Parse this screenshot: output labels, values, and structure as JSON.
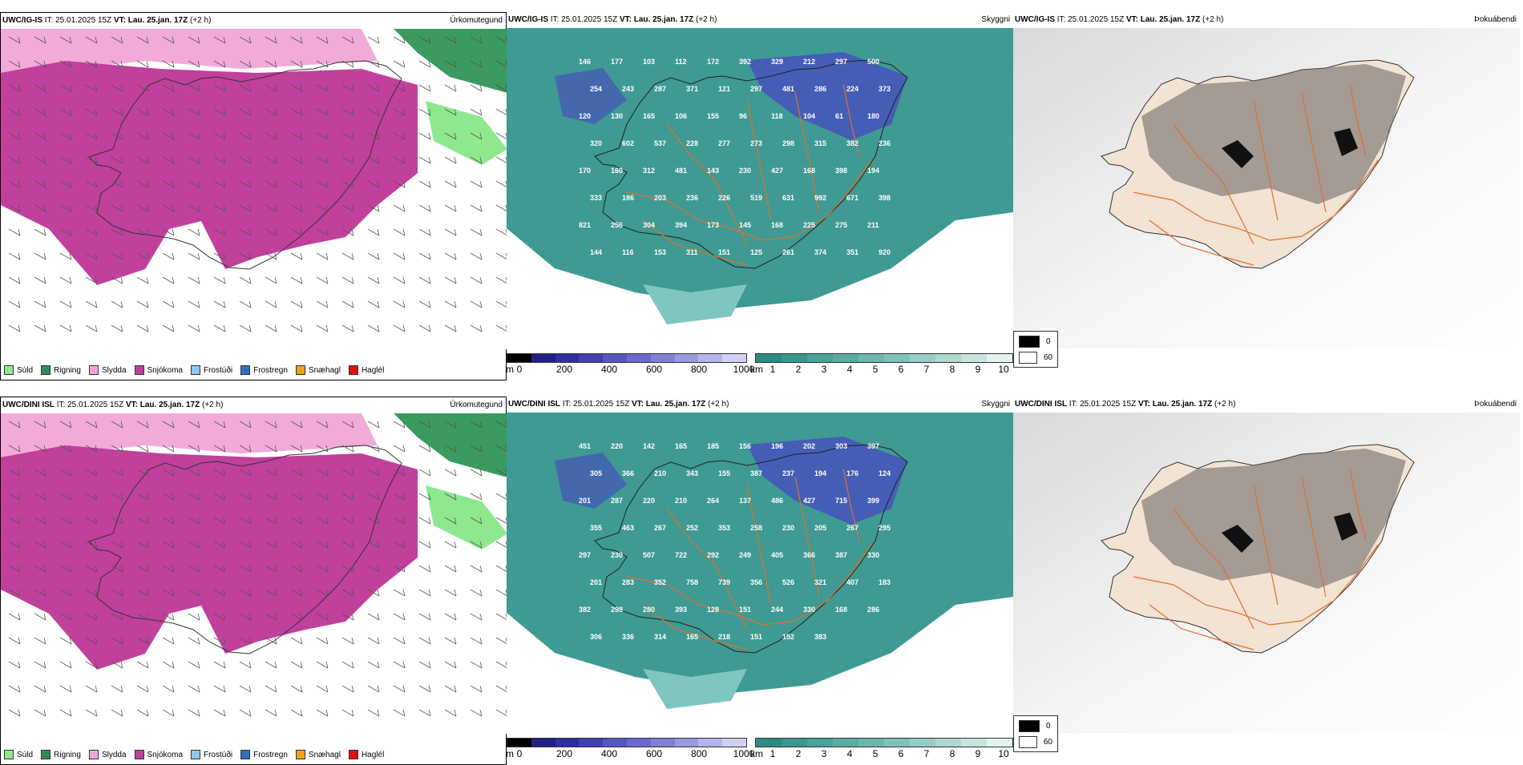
{
  "rows": [
    {
      "model": "UWC/IG-IS",
      "it": "IT: 25.01.2025 15Z",
      "vt_label": "VT:",
      "vt": "Lau. 25.jan. 17Z",
      "offset": "(+2 h)",
      "titles": {
        "precip": "Úrkomutegund",
        "cloud": "Skyggni",
        "fog": "Þokuábendi"
      },
      "labels": [
        "146",
        "177",
        "103",
        "112",
        "172",
        "392",
        "329",
        "212",
        "297",
        "500",
        "254",
        "243",
        "287",
        "371",
        "121",
        "297",
        "481",
        "286",
        "224",
        "373",
        "120",
        "130",
        "165",
        "106",
        "155",
        "96",
        "118",
        "104",
        "61",
        "180",
        "320",
        "602",
        "537",
        "228",
        "277",
        "273",
        "298",
        "315",
        "382",
        "236",
        "170",
        "160",
        "312",
        "481",
        "143",
        "230",
        "427",
        "168",
        "398",
        "194",
        "333",
        "186",
        "203",
        "236",
        "226",
        "519",
        "631",
        "992",
        "671",
        "398",
        "821",
        "256",
        "304",
        "394",
        "173",
        "145",
        "168",
        "225",
        "275",
        "211",
        "144",
        "116",
        "153",
        "311",
        "151",
        "125",
        "261",
        "374",
        "351",
        "920"
      ]
    },
    {
      "model": "UWC/DINI ISL",
      "it": "IT: 25.01.2025 15Z",
      "vt_label": "VT:",
      "vt": "Lau. 25.jan. 17Z",
      "offset": "(+2 h)",
      "titles": {
        "precip": "Úrkomutegund",
        "cloud": "Skyggni",
        "fog": "Þokuábendi"
      },
      "labels": [
        "451",
        "220",
        "142",
        "165",
        "185",
        "156",
        "196",
        "202",
        "303",
        "397",
        "305",
        "366",
        "210",
        "343",
        "155",
        "387",
        "237",
        "194",
        "176",
        "124",
        "201",
        "287",
        "220",
        "210",
        "264",
        "137",
        "486",
        "427",
        "715",
        "399",
        "355",
        "463",
        "267",
        "252",
        "353",
        "258",
        "230",
        "205",
        "267",
        "295",
        "297",
        "230",
        "507",
        "722",
        "292",
        "249",
        "405",
        "366",
        "387",
        "330",
        "201",
        "283",
        "352",
        "758",
        "739",
        "356",
        "526",
        "321",
        "407",
        "183",
        "382",
        "298",
        "280",
        "393",
        "128",
        "151",
        "244",
        "330",
        "168",
        "286",
        "306",
        "336",
        "314",
        "165",
        "218",
        "151",
        "152",
        "383"
      ]
    }
  ],
  "precip_legend": [
    {
      "label": "Súld",
      "color": "#8ee88e"
    },
    {
      "label": "Rigning",
      "color": "#2e8b57"
    },
    {
      "label": "Slydda",
      "color": "#f0a6d8"
    },
    {
      "label": "Snjókoma",
      "color": "#c040a0"
    },
    {
      "label": "Frostúði",
      "color": "#8ec8f0"
    },
    {
      "label": "Frostregn",
      "color": "#3070c0"
    },
    {
      "label": "Snæhagl",
      "color": "#f0a020"
    },
    {
      "label": "Haglél",
      "color": "#e01010"
    }
  ],
  "cloud_base_bar": {
    "unit": "m",
    "ticks": [
      "0",
      "200",
      "400",
      "600",
      "800",
      "1000"
    ]
  },
  "visibility_bar": {
    "unit": "km",
    "ticks": [
      "1",
      "2",
      "3",
      "4",
      "5",
      "6",
      "7",
      "8",
      "9",
      "10"
    ]
  },
  "fog_key": [
    "0",
    "60"
  ],
  "colors": {
    "snow": "#c0409c",
    "sleet": "#f2aad8",
    "rain": "#3a9a60",
    "drizzle": "#8ee88e",
    "teal": "#3e9a92",
    "blue": "#4848c0",
    "road": "#e07030",
    "land": "#f3e3d3"
  }
}
